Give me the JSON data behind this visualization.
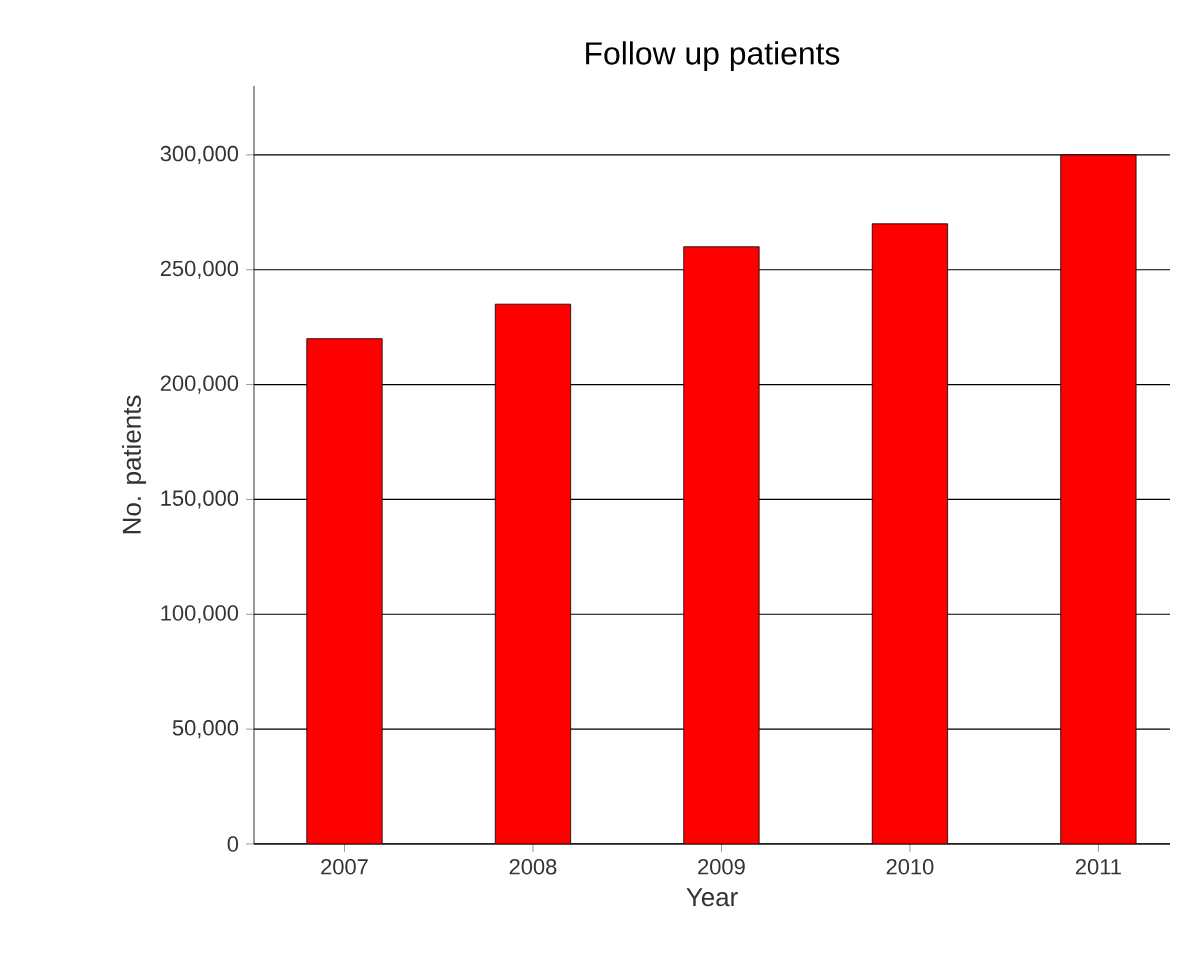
{
  "chart_data": {
    "type": "bar",
    "title": "Follow up patients",
    "xlabel": "Year",
    "ylabel": "No. patients",
    "categories": [
      "2007",
      "2008",
      "2009",
      "2010",
      "2011"
    ],
    "values": [
      220000,
      235000,
      260000,
      270000,
      300000
    ],
    "color": "#ff0000",
    "ylim": [
      0,
      330000
    ],
    "yticks": [
      0,
      {
        "value": 50000,
        "label": "50,000"
      },
      {
        "value": 100000,
        "label": "100,000"
      },
      {
        "value": 150000,
        "label": "150,000"
      },
      {
        "value": 200000,
        "label": "200,000"
      },
      {
        "value": 250000,
        "label": "250,000"
      },
      {
        "value": 300000,
        "label": "300,000"
      }
    ],
    "grid": "y"
  }
}
